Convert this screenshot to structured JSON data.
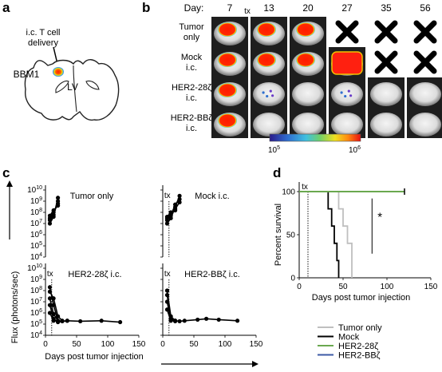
{
  "panels": {
    "a": "a",
    "b": "b",
    "c": "c",
    "d": "d"
  },
  "panel_a": {
    "delivery_label_1": "i.c. T cell",
    "delivery_label_2": "delivery",
    "tumor_label": "BBM1",
    "ventricle_label": "LV"
  },
  "panel_b": {
    "day_header": "Day:",
    "tx_label": "tx",
    "days": [
      "7",
      "13",
      "20",
      "27",
      "35",
      "56"
    ],
    "rows": [
      {
        "label_1": "Tumor",
        "label_2": "only",
        "cells": [
          "high",
          "high",
          "high",
          "dead",
          "dead",
          "dead"
        ]
      },
      {
        "label_1": "Mock",
        "label_2": "i.c.",
        "cells": [
          "high",
          "high",
          "high",
          "very-high",
          "dead",
          "dead"
        ]
      },
      {
        "label_1": "HER2-28ζ",
        "label_2": "i.c.",
        "cells": [
          "high",
          "low",
          "none",
          "low",
          "none",
          "none"
        ]
      },
      {
        "label_1": "HER2-BBζ",
        "label_2": "i.c.",
        "cells": [
          "high",
          "none",
          "none",
          "none",
          "none",
          "none"
        ]
      }
    ],
    "colorbar_min": "10",
    "colorbar_min_exp": "5",
    "colorbar_max": "10",
    "colorbar_max_exp": "6"
  },
  "chart_data": [
    {
      "type": "line",
      "panel": "c",
      "title": "Tumor only",
      "ylabel": "Flux (photons/sec)",
      "y_scale": "log",
      "ylim": [
        10000,
        10000000000
      ],
      "y_ticks": [
        "10",
        "10",
        "10",
        "10",
        "10",
        "10",
        "10"
      ],
      "y_tick_exps": [
        "4",
        "5",
        "6",
        "7",
        "8",
        "9",
        "10"
      ],
      "xlim": [
        0,
        150
      ],
      "series": [
        {
          "x": [
            7,
            13,
            20
          ],
          "y": [
            10000000,
            40000000,
            2000000000
          ]
        },
        {
          "x": [
            7,
            13,
            20
          ],
          "y": [
            20000000,
            60000000,
            1000000000
          ]
        },
        {
          "x": [
            7,
            13,
            20
          ],
          "y": [
            30000000,
            100000000,
            600000000
          ]
        },
        {
          "x": [
            7,
            13,
            20
          ],
          "y": [
            50000000,
            150000000,
            400000000
          ]
        }
      ]
    },
    {
      "type": "line",
      "panel": "c",
      "title": "Mock i.c.",
      "tx_marker": "tx",
      "tx_day": 10,
      "y_scale": "log",
      "ylim": [
        10000,
        10000000000
      ],
      "xlim": [
        0,
        150
      ],
      "series": [
        {
          "x": [
            7,
            13,
            20,
            27
          ],
          "y": [
            10000000,
            30000000,
            300000000,
            3000000000
          ]
        },
        {
          "x": [
            7,
            13,
            20,
            27
          ],
          "y": [
            20000000,
            50000000,
            500000000,
            1500000000
          ]
        },
        {
          "x": [
            7,
            13,
            20,
            27
          ],
          "y": [
            30000000,
            80000000,
            200000000,
            800000000
          ]
        },
        {
          "x": [
            7,
            13,
            20
          ],
          "y": [
            40000000,
            100000000,
            150000000
          ]
        }
      ]
    },
    {
      "type": "line",
      "panel": "c",
      "title": "HER2-28ζ i.c.",
      "tx_marker": "tx",
      "tx_day": 10,
      "y_scale": "log",
      "ylim": [
        10000,
        10000000000
      ],
      "y_ticks": [
        "10",
        "10",
        "10",
        "10",
        "10",
        "10",
        "10"
      ],
      "y_tick_exps": [
        "4",
        "5",
        "6",
        "7",
        "8",
        "9",
        "10"
      ],
      "xlim": [
        0,
        150
      ],
      "x_ticks": [
        "0",
        "50",
        "100",
        "150"
      ],
      "x_tick_values": [
        0,
        50,
        100,
        150
      ],
      "xlabel": "Days post tumor injection",
      "series": [
        {
          "x": [
            7,
            13,
            20,
            27,
            35,
            56,
            90,
            120
          ],
          "y": [
            200000000,
            5000000,
            200000,
            180000,
            200000,
            180000,
            200000,
            150000
          ]
        },
        {
          "x": [
            7,
            13,
            20,
            27
          ],
          "y": [
            80000000,
            20000000,
            500000,
            200000
          ]
        },
        {
          "x": [
            7,
            13,
            20
          ],
          "y": [
            20000000,
            800000,
            200000
          ]
        },
        {
          "x": [
            7,
            13,
            20,
            35
          ],
          "y": [
            5000000,
            300000,
            150000,
            200000
          ]
        },
        {
          "x": [
            7,
            13,
            20
          ],
          "y": [
            1000000,
            200000,
            180000
          ]
        }
      ]
    },
    {
      "type": "line",
      "panel": "c",
      "title": "HER2-BBζ i.c.",
      "tx_marker": "tx",
      "tx_day": 10,
      "y_scale": "log",
      "ylim": [
        10000,
        10000000000
      ],
      "xlim": [
        0,
        150
      ],
      "x_ticks": [
        "0",
        "50",
        "100",
        "150"
      ],
      "x_tick_values": [
        0,
        50,
        100,
        150
      ],
      "series": [
        {
          "x": [
            7,
            13,
            20,
            27,
            35,
            56,
            70,
            90,
            120
          ],
          "y": [
            100000000,
            500000,
            200000,
            180000,
            200000,
            250000,
            300000,
            250000,
            200000
          ]
        },
        {
          "x": [
            7,
            13,
            20
          ],
          "y": [
            40000000,
            300000,
            200000
          ]
        },
        {
          "x": [
            7,
            13,
            20
          ],
          "y": [
            10000000,
            250000,
            180000
          ]
        },
        {
          "x": [
            7,
            13,
            20
          ],
          "y": [
            2000000,
            200000,
            200000
          ]
        }
      ]
    },
    {
      "type": "line",
      "panel": "d",
      "step": true,
      "ylabel": "Percent survival",
      "xlabel": "Days post tumor injection",
      "tx_marker": "tx",
      "tx_day": 10,
      "xlim": [
        0,
        150
      ],
      "ylim": [
        0,
        100
      ],
      "x_ticks": [
        "0",
        "50",
        "100",
        "150"
      ],
      "x_tick_values": [
        0,
        50,
        100,
        150
      ],
      "y_ticks": [
        "0",
        "50",
        "100"
      ],
      "y_tick_values": [
        0,
        50,
        100
      ],
      "annotation": "*",
      "series": [
        {
          "name": "Tumor only",
          "color": "#bfbfbf",
          "x": [
            0,
            40,
            45,
            50,
            55,
            60,
            60
          ],
          "y": [
            100,
            100,
            80,
            60,
            40,
            20,
            0
          ]
        },
        {
          "name": "Mock",
          "color": "#000000",
          "x": [
            0,
            30,
            33,
            37,
            40,
            43,
            45,
            45
          ],
          "y": [
            100,
            100,
            80,
            60,
            40,
            20,
            20,
            0
          ]
        },
        {
          "name": "HER2-28ζ",
          "color": "#6aa84f",
          "x": [
            0,
            120
          ],
          "y": [
            100,
            100
          ]
        },
        {
          "name": "HER2-BBζ",
          "color": "#3c5aa6",
          "x": [
            0,
            120
          ],
          "y": [
            100,
            100
          ]
        }
      ]
    }
  ]
}
